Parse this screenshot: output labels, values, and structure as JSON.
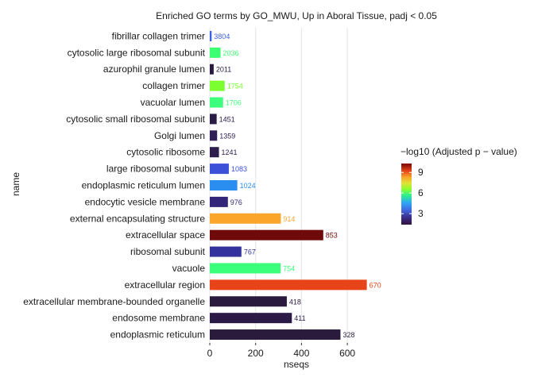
{
  "chart_data": {
    "type": "bar",
    "orientation": "horizontal",
    "title": "Enriched GO terms by GO_MWU, Up in Aboral Tissue, padj < 0.05",
    "xlabel": "nseqs",
    "ylabel": "name",
    "xlim": [
      0,
      700
    ],
    "xticks": [
      0,
      200,
      400,
      600
    ],
    "grid": "vertical major lines",
    "legend": {
      "title": "−log10 (Adjusted p − value)",
      "placement": "right",
      "ticks": [
        3,
        6,
        9
      ],
      "range": [
        1.4,
        10.3
      ],
      "colormap": "turbo"
    },
    "bars": [
      {
        "name": "fibrillar collagen trimer",
        "value": 8,
        "label": "3804",
        "color": "#3a5fe8"
      },
      {
        "name": "cytosolic large ribosomal subunit",
        "value": 47,
        "label": "2036",
        "color": "#3dff72"
      },
      {
        "name": "azurophil granule lumen",
        "value": 17,
        "label": "2011",
        "color": "#281a3f"
      },
      {
        "name": "collagen trimer",
        "value": 65,
        "label": "1754",
        "color": "#7bff2f"
      },
      {
        "name": "vacuolar lumen",
        "value": 58,
        "label": "1706",
        "color": "#3dff7c"
      },
      {
        "name": "cytosolic small ribosomal subunit",
        "value": 30,
        "label": "1451",
        "color": "#2a1b45"
      },
      {
        "name": "Golgi lumen",
        "value": 32,
        "label": "1359",
        "color": "#2e1e55"
      },
      {
        "name": "cytosolic ribosome",
        "value": 40,
        "label": "1241",
        "color": "#2c1d4c"
      },
      {
        "name": "large ribosomal subunit",
        "value": 83,
        "label": "1083",
        "color": "#3c50d8"
      },
      {
        "name": "endoplasmic reticulum lumen",
        "value": 120,
        "label": "1024",
        "color": "#2a8ef0"
      },
      {
        "name": "endocytic vesicle membrane",
        "value": 79,
        "label": "976",
        "color": "#33267a"
      },
      {
        "name": "external encapsulating structure",
        "value": 310,
        "label": "914",
        "color": "#fba62b"
      },
      {
        "name": "extracellular space",
        "value": 495,
        "label": "853",
        "color": "#6e0a0a"
      },
      {
        "name": "ribosomal subunit",
        "value": 138,
        "label": "767",
        "color": "#34329c"
      },
      {
        "name": "vacuole",
        "value": 309,
        "label": "754",
        "color": "#3aff7a"
      },
      {
        "name": "extracellular region",
        "value": 685,
        "label": "670",
        "color": "#e8441a"
      },
      {
        "name": "extracellular membrane-bounded organelle",
        "value": 336,
        "label": "418",
        "color": "#291a3e"
      },
      {
        "name": "endosome membrane",
        "value": 358,
        "label": "411",
        "color": "#2a1a45"
      },
      {
        "name": "endoplasmic reticulum",
        "value": 570,
        "label": "328",
        "color": "#2a1a3c"
      }
    ]
  }
}
